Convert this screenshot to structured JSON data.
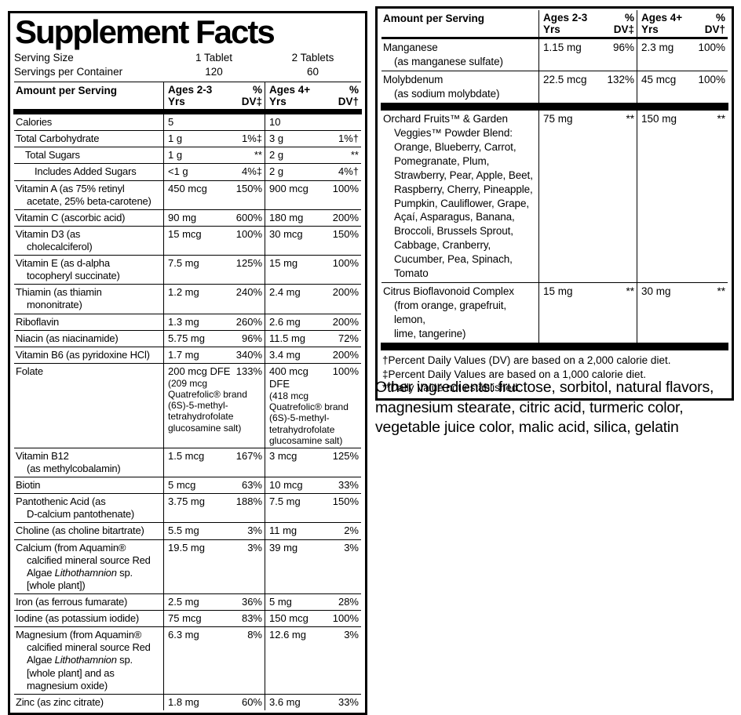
{
  "left_panel": {
    "title": "Supplement Facts",
    "serving": {
      "size_label": "Serving Size",
      "container_label": "Servings per Container",
      "col1_size": "1 Tablet",
      "col1_count": "120",
      "col2_size": "2 Tablets",
      "col2_count": "60"
    },
    "header": {
      "amount": "Amount per Serving",
      "col1": "Ages 2-3 Yrs",
      "dv1": "% DV‡",
      "col2": "Ages 4+ Yrs",
      "dv2": "% DV†"
    },
    "rows": [
      {
        "name": "Calories",
        "a1": "5",
        "dv1": "",
        "a2": "10",
        "dv2": ""
      },
      {
        "name": "Total Carbohydrate",
        "a1": "1 g",
        "dv1": "1%‡",
        "a2": "3 g",
        "dv2": "1%†"
      },
      {
        "name": "Total Sugars",
        "indent": 1,
        "a1": "1 g",
        "dv1": "**",
        "a2": "2 g",
        "dv2": "**"
      },
      {
        "name": "Includes Added Sugars",
        "indent": 2,
        "a1": "<1 g",
        "dv1": "4%‡",
        "a2": "2 g",
        "dv2": "4%†"
      },
      {
        "name": "Vitamin A (as 75% retinyl\nacetate, 25% beta-carotene)",
        "a1": "450 mcg",
        "dv1": "150%",
        "a2": "900 mcg",
        "dv2": "100%"
      },
      {
        "name": "Vitamin C (ascorbic acid)",
        "a1": "90 mg",
        "dv1": "600%",
        "a2": "180 mg",
        "dv2": "200%"
      },
      {
        "name": "Vitamin D3 (as\ncholecalciferol)",
        "a1": "15 mcg",
        "dv1": "100%",
        "a2": "30 mcg",
        "dv2": "150%"
      },
      {
        "name": "Vitamin E (as d-alpha\ntocopheryl succinate)",
        "a1": "7.5 mg",
        "dv1": "125%",
        "a2": "15 mg",
        "dv2": "100%"
      },
      {
        "name": "Thiamin (as thiamin\nmononitrate)",
        "a1": "1.2 mg",
        "dv1": "240%",
        "a2": "2.4 mg",
        "dv2": "200%"
      },
      {
        "name": "Riboflavin",
        "a1": "1.3 mg",
        "dv1": "260%",
        "a2": "2.6 mg",
        "dv2": "200%"
      },
      {
        "name": "Niacin (as niacinamide)",
        "a1": "5.75 mg",
        "dv1": "96%",
        "a2": "11.5 mg",
        "dv2": "72%"
      },
      {
        "name": "Vitamin B6 (as pyridoxine HCl)",
        "a1": "1.7 mg",
        "dv1": "340%",
        "a2": "3.4 mg",
        "dv2": "200%"
      },
      {
        "name": "Folate",
        "a1": "200 mcg DFE",
        "dv1": "133%",
        "sub1": "(209 mcg Quatrefolic® brand (6S)-5-methyl-tetrahydrofolate glucosamine salt)",
        "a2": "400 mcg DFE",
        "dv2": "100%",
        "sub2": "(418 mcg Quatrefolic® brand (6S)-5-methyl-tetrahydrofolate glucosamine salt)"
      },
      {
        "name": "Vitamin B12\n(as methylcobalamin)",
        "a1": "1.5 mcg",
        "dv1": "167%",
        "a2": "3 mcg",
        "dv2": "125%"
      },
      {
        "name": "Biotin",
        "a1": "5 mcg",
        "dv1": "63%",
        "a2": "10 mcg",
        "dv2": "33%"
      },
      {
        "name": "Pantothenic Acid (as\nD-calcium pantothenate)",
        "a1": "3.75 mg",
        "dv1": "188%",
        "a2": "7.5 mg",
        "dv2": "150%"
      },
      {
        "name": "Choline (as choline bitartrate)",
        "a1": "5.5 mg",
        "dv1": "3%",
        "a2": "11 mg",
        "dv2": "2%"
      },
      {
        "name": "Calcium (from Aquamin® calcified mineral source Red Algae _Lithothamnion_ sp. [whole plant])",
        "a1": "19.5 mg",
        "dv1": "3%",
        "a2": "39 mg",
        "dv2": "3%"
      },
      {
        "name": "Iron (as ferrous fumarate)",
        "a1": "2.5 mg",
        "dv1": "36%",
        "a2": "5 mg",
        "dv2": "28%"
      },
      {
        "name": "Iodine (as potassium iodide)",
        "a1": "75 mcg",
        "dv1": "83%",
        "a2": "150 mcg",
        "dv2": "100%"
      },
      {
        "name": "Magnesium (from Aquamin® calcified mineral source Red Algae _Lithothamnion_ sp. [whole plant] and as magnesium oxide)",
        "a1": "6.3 mg",
        "dv1": "8%",
        "a2": "12.6 mg",
        "dv2": "3%"
      },
      {
        "name": "Zinc (as zinc citrate)",
        "a1": "1.8 mg",
        "dv1": "60%",
        "a2": "3.6 mg",
        "dv2": "33%"
      }
    ]
  },
  "right_panel": {
    "header": {
      "amount": "Amount per Serving",
      "col1": "Ages 2-3 Yrs",
      "dv1": "% DV‡",
      "col2": "Ages 4+ Yrs",
      "dv2": "% DV†"
    },
    "mineral_rows": [
      {
        "name": "Manganese\n(as manganese sulfate)",
        "a1": "1.15 mg",
        "dv1": "96%",
        "a2": "2.3 mg",
        "dv2": "100%"
      },
      {
        "name": "Molybdenum\n(as sodium molybdate)",
        "a1": "22.5 mcg",
        "dv1": "132%",
        "a2": "45 mcg",
        "dv2": "100%"
      }
    ],
    "blend_rows": [
      {
        "name": "Orchard Fruits™ & Garden Veggies™ Powder Blend: Orange, Blueberry, Carrot, Pomegranate, Plum, Strawberry, Pear, Apple, Beet, Raspberry, Cherry, Pineapple, Pumpkin, Cauliflower, Grape, Açaí, Asparagus, Banana, Broccoli, Brussels Sprout, Cabbage, Cranberry, Cucumber, Pea, Spinach, Tomato",
        "a1": "75 mg",
        "dv1": "**",
        "a2": "150 mg",
        "dv2": "**"
      },
      {
        "name": "Citrus Bioflavonoid Complex\n(from orange, grapefruit, lemon,\nlime, tangerine)",
        "a1": "15 mg",
        "dv1": "**",
        "a2": "30 mg",
        "dv2": "**"
      }
    ],
    "footnotes": [
      "†Percent Daily Values (DV) are based on a 2,000 calorie diet.",
      "‡Percent Daily Values are based on a 1,000 calorie diet.",
      "**Daily Value not established."
    ]
  },
  "other_ingredients": "Other ingredients: fructose, sorbitol, natural flavors, magnesium stearate, citric acid, turmeric color, vegetable juice color, malic acid, silica, gelatin"
}
